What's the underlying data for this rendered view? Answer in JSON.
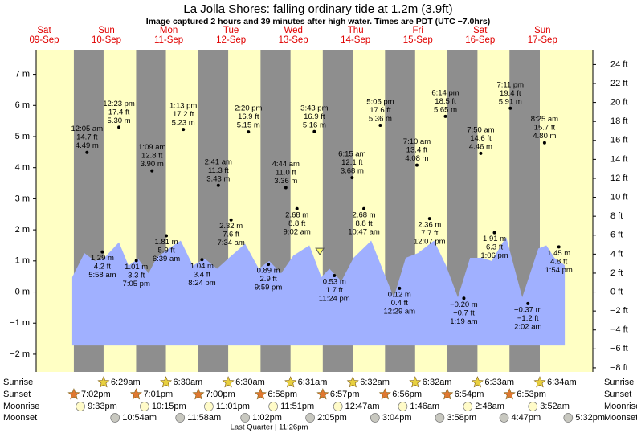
{
  "chart_data": {
    "type": "tide",
    "title": "La Jolla Shores: falling  ordinary tide at 1.2m (3.9ft)",
    "subtitle": "Image captured 2 hours and 39 minutes after high water. Times are PDT (UTC −7.0hrs)",
    "days": [
      {
        "day": "Sat",
        "date": "09‑Sep"
      },
      {
        "day": "Sun",
        "date": "10‑Sep"
      },
      {
        "day": "Mon",
        "date": "11‑Sep"
      },
      {
        "day": "Tue",
        "date": "12‑Sep"
      },
      {
        "day": "Wed",
        "date": "13‑Sep"
      },
      {
        "day": "Thu",
        "date": "14‑Sep"
      },
      {
        "day": "Fri",
        "date": "15‑Sep"
      },
      {
        "day": "Sat",
        "date": "16‑Sep"
      },
      {
        "day": "Sun",
        "date": "17‑Sep"
      }
    ],
    "xlim": [
      4.5,
      219
    ],
    "ylim": [
      -2.57,
      7.79
    ],
    "yticks": [
      {
        "value": -2,
        "label": "−2 m"
      },
      {
        "value": -1,
        "label": "−1 m"
      },
      {
        "value": 0,
        "label": "0 m"
      },
      {
        "value": 1,
        "label": "1 m"
      },
      {
        "value": 2,
        "label": "2 m"
      },
      {
        "value": 3,
        "label": "3 m"
      },
      {
        "value": 4,
        "label": "4 m"
      },
      {
        "value": 5,
        "label": "5 m"
      },
      {
        "value": 6,
        "label": "6 m"
      },
      {
        "value": 7,
        "label": "7 m"
      }
    ],
    "y2lim": [
      -8.43,
      25.56
    ],
    "y2ticks": [
      {
        "value": -8,
        "label": "−8 ft"
      },
      {
        "value": -6,
        "label": "−6 ft"
      },
      {
        "value": -4,
        "label": "−4 ft"
      },
      {
        "value": -2,
        "label": "−2 ft"
      },
      {
        "value": 0,
        "label": "0 ft"
      },
      {
        "value": 2,
        "label": "2 ft"
      },
      {
        "value": 4,
        "label": "4 ft"
      },
      {
        "value": 6,
        "label": "6 ft"
      },
      {
        "value": 8,
        "label": "8 ft"
      },
      {
        "value": 10,
        "label": "10 ft"
      },
      {
        "value": 12,
        "label": "12 ft"
      },
      {
        "value": 14,
        "label": "14 ft"
      },
      {
        "value": 16,
        "label": "16 ft"
      },
      {
        "value": 18,
        "label": "18 ft"
      },
      {
        "value": 20,
        "label": "20 ft"
      },
      {
        "value": 22,
        "label": "22 ft"
      },
      {
        "value": 24,
        "label": "24 ft"
      }
    ],
    "tide_area": {
      "color": "#a0b0ff",
      "floor": -1.72,
      "x": [
        18.4,
        23.1,
        27.1,
        30.8,
        36.4,
        40.1,
        43.8,
        47.8,
        50.9,
        55.6,
        60.2,
        64.9,
        69.5,
        74.2,
        78.8,
        85.0,
        90.3,
        94.3,
        98.9,
        103.6,
        109.8,
        114.4,
        117.5,
        122.1,
        126.8,
        133.6,
        138.6,
        142.3,
        146.9,
        151.6,
        157.8,
        162.4,
        167.0,
        171.7,
        176.3,
        180.0,
        185.6,
        191.8,
        198.0,
        201.1,
        204.2,
        208.2
      ],
      "values": [
        0.48,
        1.25,
        1.0,
        1.1,
        1.6,
        0.85,
        1.07,
        0.6,
        1.1,
        1.4,
        1.65,
        0.85,
        1.07,
        0.75,
        1.1,
        1.55,
        0.75,
        1.0,
        0.6,
        1.17,
        1.5,
        0.48,
        0.75,
        0.35,
        1.1,
        1.65,
        0.6,
        -0.17,
        1.1,
        1.25,
        1.65,
        0.86,
        -0.17,
        1.1,
        1.1,
        1.0,
        1.77,
        -0.17,
        1.4,
        1.5,
        1.1,
        0.86
      ]
    },
    "current": {
      "x": 113.8,
      "value": 1.2,
      "color": "#ffff66"
    },
    "events": [
      {
        "x": 24.1,
        "value": 4.49,
        "time": "12:05 am",
        "ft": "14.7 ft",
        "m": "4.49 m"
      },
      {
        "x": 30.0,
        "value": 1.29,
        "time": "5:58 am",
        "ft": "4.2 ft",
        "m": "1.29 m"
      },
      {
        "x": 36.4,
        "value": 5.3,
        "time": "12:23 pm",
        "ft": "17.4 ft",
        "m": "5.30 m"
      },
      {
        "x": 43.1,
        "value": 1.01,
        "time": "7:05 pm",
        "ft": "3.3 ft",
        "m": "1.01 m"
      },
      {
        "x": 49.15,
        "value": 3.9,
        "time": "1:09 am",
        "ft": "12.8 ft",
        "m": "3.90 m"
      },
      {
        "x": 54.65,
        "value": 1.81,
        "time": "6:39 am",
        "ft": "5.9 ft",
        "m": "1.81 m"
      },
      {
        "x": 61.2,
        "value": 5.23,
        "time": "1:13 pm",
        "ft": "17.2 ft",
        "m": "5.23 m"
      },
      {
        "x": 68.4,
        "value": 1.04,
        "time": "8:24 pm",
        "ft": "3.4 ft",
        "m": "1.04 m"
      },
      {
        "x": 74.7,
        "value": 3.43,
        "time": "2:41 am",
        "ft": "11.3 ft",
        "m": "3.43 m"
      },
      {
        "x": 79.6,
        "value": 2.32,
        "time": "7:34 am",
        "ft": "7.6 ft",
        "m": "2.32 m"
      },
      {
        "x": 86.3,
        "value": 5.15,
        "time": "2:20 pm",
        "ft": "16.9 ft",
        "m": "5.15 m"
      },
      {
        "x": 93.98,
        "value": 0.89,
        "time": "9:59 pm",
        "ft": "2.9 ft",
        "m": "0.89 m"
      },
      {
        "x": 100.7,
        "value": 3.36,
        "time": "4:44 am",
        "ft": "11.0 ft",
        "m": "3.36 m"
      },
      {
        "x": 105.0,
        "value": 2.68,
        "time": "9:02 am",
        "ft": "8.8 ft",
        "m": "2.68 m"
      },
      {
        "x": 111.7,
        "value": 5.16,
        "time": "3:43 pm",
        "ft": "16.9 ft",
        "m": "5.16 m"
      },
      {
        "x": 119.4,
        "value": 0.53,
        "time": "11:24 pm",
        "ft": "1.7 ft",
        "m": "0.53 m"
      },
      {
        "x": 126.25,
        "value": 3.68,
        "time": "6:15 am",
        "ft": "12.1 ft",
        "m": "3.68 m"
      },
      {
        "x": 130.8,
        "value": 2.68,
        "time": "10:47 am",
        "ft": "8.8 ft",
        "m": "2.68 m"
      },
      {
        "x": 137.1,
        "value": 5.36,
        "time": "5:05 pm",
        "ft": "17.6 ft",
        "m": "5.36 m"
      },
      {
        "x": 144.5,
        "value": 0.12,
        "time": "12:29 am",
        "ft": "0.4 ft",
        "m": "0.12 m"
      },
      {
        "x": 151.2,
        "value": 4.08,
        "time": "7:10 am",
        "ft": "13.4 ft",
        "m": "4.08 m"
      },
      {
        "x": 156.1,
        "value": 2.36,
        "time": "12:07 pm",
        "ft": "7.7 ft",
        "m": "2.36 m"
      },
      {
        "x": 162.2,
        "value": 5.65,
        "time": "6:14 pm",
        "ft": "18.5 ft",
        "m": "5.65 m"
      },
      {
        "x": 169.3,
        "value": -0.2,
        "time": "1:19 am",
        "ft": "−0.7 ft",
        "m": "−0.20 m"
      },
      {
        "x": 175.8,
        "value": 4.46,
        "time": "7:50 am",
        "ft": "14.6 ft",
        "m": "4.46 m"
      },
      {
        "x": 181.1,
        "value": 1.91,
        "time": "1:06 pm",
        "ft": "6.3 ft",
        "m": "1.91 m"
      },
      {
        "x": 187.2,
        "value": 5.91,
        "time": "7:11 pm",
        "ft": "19.4 ft",
        "m": "5.91 m"
      },
      {
        "x": 194.0,
        "value": -0.37,
        "time": "2:02 am",
        "ft": "−1.2 ft",
        "m": "−0.37 m"
      },
      {
        "x": 200.4,
        "value": 4.8,
        "time": "8:25 am",
        "ft": "15.7 ft",
        "m": "4.80 m"
      },
      {
        "x": 205.9,
        "value": 1.45,
        "time": "1:54 pm",
        "ft": "4.8 ft",
        "m": "1.45 m"
      }
    ],
    "row_labels": [
      "Sunrise",
      "Sunset",
      "Moonrise",
      "Moonset"
    ],
    "sunrise": [
      {
        "x": 30.48,
        "time": "6:29am"
      },
      {
        "x": 54.5,
        "time": "6:30am"
      },
      {
        "x": 78.5,
        "time": "6:30am"
      },
      {
        "x": 102.52,
        "time": "6:31am"
      },
      {
        "x": 126.53,
        "time": "6:32am"
      },
      {
        "x": 150.53,
        "time": "6:32am"
      },
      {
        "x": 174.55,
        "time": "6:33am"
      },
      {
        "x": 198.57,
        "time": "6:34am"
      }
    ],
    "sunset": [
      {
        "x": 19.03,
        "time": "7:02pm"
      },
      {
        "x": 43.02,
        "time": "7:01pm"
      },
      {
        "x": 67.0,
        "time": "7:00pm"
      },
      {
        "x": 90.97,
        "time": "6:58pm"
      },
      {
        "x": 114.95,
        "time": "6:57pm"
      },
      {
        "x": 138.93,
        "time": "6:56pm"
      },
      {
        "x": 162.9,
        "time": "6:54pm"
      },
      {
        "x": 186.88,
        "time": "6:53pm"
      }
    ],
    "moonrise": [
      {
        "x": 21.55,
        "time": "9:33pm"
      },
      {
        "x": 46.25,
        "time": "10:15pm"
      },
      {
        "x": 71.02,
        "time": "11:01pm"
      },
      {
        "x": 95.85,
        "time": "11:51pm"
      },
      {
        "x": 120.78,
        "time": "12:47am"
      },
      {
        "x": 145.77,
        "time": "1:46am"
      },
      {
        "x": 170.8,
        "time": "2:48am"
      },
      {
        "x": 195.87,
        "time": "3:52am"
      }
    ],
    "moonset": [
      {
        "x": 34.9,
        "time": "10:54am"
      },
      {
        "x": 59.97,
        "time": "11:58am"
      },
      {
        "x": 85.03,
        "time": "1:02pm"
      },
      {
        "x": 110.08,
        "time": "2:05pm"
      },
      {
        "x": 135.07,
        "time": "3:04pm"
      },
      {
        "x": 160.0,
        "time": "3:58pm"
      },
      {
        "x": 184.8,
        "time": "4:47pm"
      },
      {
        "x": 209.5,
        "time": "5:32pm"
      }
    ],
    "moon_phase": "Last Quarter | 11:26pm",
    "day_color": "#ffffc4",
    "night_color": "#8e8e8e"
  }
}
